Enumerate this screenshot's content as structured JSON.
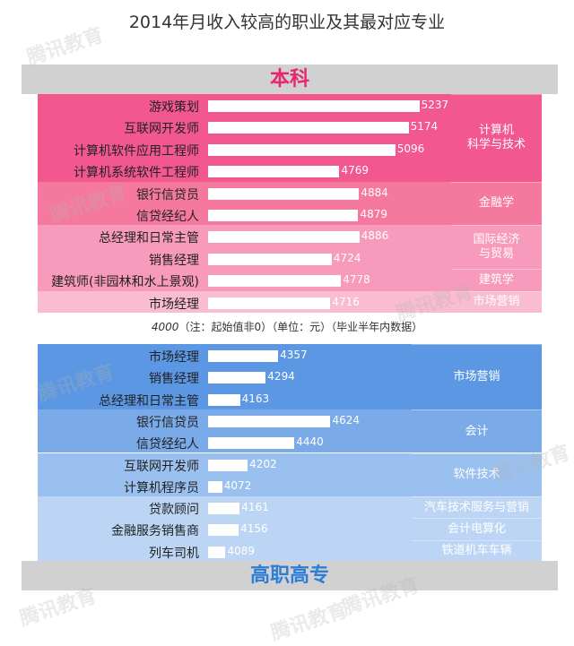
{
  "title": "2014年月收入较高的职业及其最对应专业",
  "bands": {
    "top": "本科",
    "bottom": "高职高专"
  },
  "note": {
    "baseline": "4000",
    "text": "（注：起始值非0）（单位：元）（毕业半年内数据）"
  },
  "watermark": "腾讯教育",
  "colors": {
    "pink_dark": "#f2578f",
    "pink_mid": "#f5799f",
    "pink_light": "#f89abb",
    "pink_pale": "#f9bcd1",
    "blue_dark": "#5b97e3",
    "blue_mid": "#7aabe8",
    "blue_light": "#9ac0ef",
    "blue_pale": "#bcd5f4"
  },
  "chart_data": [
    {
      "type": "bar",
      "orientation": "horizontal",
      "panel": "本科",
      "xlim": [
        4000,
        5300
      ],
      "categories": [
        "游戏策划",
        "互联网开发师",
        "计算机软件应用工程师",
        "计算机系统软件工程师",
        "银行信贷员",
        "信贷经纪人",
        "总经理和日常主管",
        "销售经理",
        "建筑师(非园林和水上景观)",
        "市场经理"
      ],
      "values": [
        5237,
        5174,
        5096,
        4769,
        4884,
        4879,
        4886,
        4724,
        4778,
        4716
      ],
      "groups": [
        {
          "label": "计算机\n科学与技术",
          "rows": [
            0,
            3
          ]
        },
        {
          "label": "金融学",
          "rows": [
            4,
            5
          ]
        },
        {
          "label": "国际经济\n与贸易",
          "rows": [
            6,
            7
          ]
        },
        {
          "label": "建筑学",
          "rows": [
            8,
            8
          ]
        },
        {
          "label": "市场营销",
          "rows": [
            9,
            9
          ]
        }
      ]
    },
    {
      "type": "bar",
      "orientation": "horizontal",
      "panel": "高职高专",
      "xlim": [
        4000,
        5300
      ],
      "categories": [
        "市场经理",
        "销售经理",
        "总经理和日常主管",
        "银行信贷员",
        "信贷经纪人",
        "互联网开发师",
        "计算机程序员",
        "贷款顾问",
        "金融服务销售商",
        "列车司机"
      ],
      "values": [
        4357,
        4294,
        4163,
        4624,
        4440,
        4202,
        4072,
        4161,
        4156,
        4089
      ],
      "groups": [
        {
          "label": "市场营销",
          "rows": [
            0,
            2
          ]
        },
        {
          "label": "会计",
          "rows": [
            3,
            4
          ]
        },
        {
          "label": "软件技术",
          "rows": [
            5,
            6
          ]
        },
        {
          "label": "汽车技术服务与营销",
          "rows": [
            7,
            7
          ]
        },
        {
          "label": "会计电算化",
          "rows": [
            8,
            8
          ]
        },
        {
          "label": "铁道机车车辆",
          "rows": [
            9,
            9
          ]
        }
      ]
    }
  ]
}
